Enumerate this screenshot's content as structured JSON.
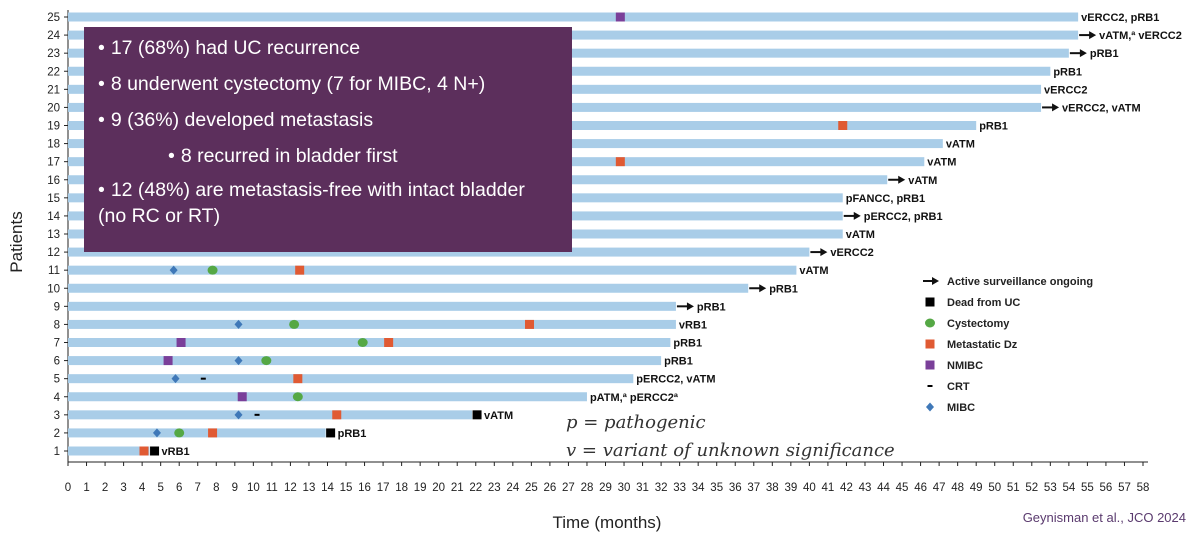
{
  "summary": {
    "items": [
      {
        "text": "17 (68%) had UC recurrence",
        "sub": false
      },
      {
        "text": "8 underwent cystectomy (7 for MIBC, 4 N+)",
        "sub": false
      },
      {
        "text": "9 (36%) developed metastasis",
        "sub": false
      },
      {
        "text": "8 recurred in bladder first",
        "sub": true
      },
      {
        "text": "12 (48%) are metastasis-free with intact bladder (no RC or RT)",
        "sub": false
      }
    ]
  },
  "notes": [
    "p = pathogenic",
    "v = variant of unknown significance"
  ],
  "citation": "Geynisman et al., JCO 2024",
  "colors": {
    "bar": "#a9cde8",
    "arrow": "#111111",
    "dead": "#000000",
    "cystectomy": "#55a845",
    "metastatic": "#e05a33",
    "nmibc": "#7a3f99",
    "crt": "#000000",
    "mibc": "#3f78b8",
    "summary_box": "#5c2f5c"
  },
  "chart_data": {
    "type": "swimmer",
    "xlabel": "Time (months)",
    "ylabel": "Patients",
    "xlim": [
      0,
      58
    ],
    "xticks": [
      0,
      1,
      2,
      3,
      4,
      5,
      6,
      7,
      8,
      9,
      10,
      11,
      12,
      13,
      14,
      15,
      16,
      17,
      18,
      19,
      20,
      21,
      22,
      23,
      24,
      25,
      26,
      27,
      28,
      29,
      30,
      31,
      32,
      33,
      34,
      35,
      36,
      37,
      38,
      39,
      40,
      41,
      42,
      43,
      44,
      45,
      46,
      47,
      48,
      49,
      50,
      51,
      52,
      53,
      54,
      55,
      56,
      57,
      58
    ],
    "ylim": [
      1,
      25
    ],
    "grid": false,
    "legend_position": "right",
    "legend": [
      {
        "key": "arrow",
        "label": "Active surveillance ongoing"
      },
      {
        "key": "dead",
        "label": "Dead from UC"
      },
      {
        "key": "cystectomy",
        "label": "Cystectomy"
      },
      {
        "key": "metastatic",
        "label": "Metastatic Dz"
      },
      {
        "key": "nmibc",
        "label": "NMIBC"
      },
      {
        "key": "crt",
        "label": "CRT"
      },
      {
        "key": "mibc",
        "label": "MIBC"
      }
    ],
    "patients": [
      {
        "id": 25,
        "end": 54.5,
        "arrow": false,
        "label": "vERCC2, pRB1",
        "events": [
          {
            "type": "nmibc",
            "t": 29.8
          }
        ]
      },
      {
        "id": 24,
        "end": 54.5,
        "arrow": true,
        "label": "vATM,ª vERCC2",
        "events": []
      },
      {
        "id": 23,
        "end": 54.0,
        "arrow": true,
        "label": "pRB1",
        "events": []
      },
      {
        "id": 22,
        "end": 53.0,
        "arrow": false,
        "label": "pRB1",
        "events": []
      },
      {
        "id": 21,
        "end": 52.5,
        "arrow": false,
        "label": "vERCC2",
        "events": []
      },
      {
        "id": 20,
        "end": 52.5,
        "arrow": true,
        "label": "vERCC2, vATM",
        "events": []
      },
      {
        "id": 19,
        "end": 49.0,
        "arrow": false,
        "label": "pRB1",
        "events": [
          {
            "type": "metastatic",
            "t": 41.8
          }
        ]
      },
      {
        "id": 18,
        "end": 47.2,
        "arrow": false,
        "label": "vATM",
        "events": []
      },
      {
        "id": 17,
        "end": 46.2,
        "arrow": false,
        "label": "vATM",
        "events": [
          {
            "type": "metastatic",
            "t": 29.8
          }
        ]
      },
      {
        "id": 16,
        "end": 44.2,
        "arrow": true,
        "label": "vATM",
        "events": []
      },
      {
        "id": 15,
        "end": 41.8,
        "arrow": false,
        "label": "pFANCC, pRB1",
        "events": []
      },
      {
        "id": 14,
        "end": 41.8,
        "arrow": true,
        "label": "pERCC2, pRB1",
        "events": []
      },
      {
        "id": 13,
        "end": 41.8,
        "arrow": false,
        "label": "vATM",
        "events": []
      },
      {
        "id": 12,
        "end": 40.0,
        "arrow": true,
        "label": "vERCC2",
        "events": []
      },
      {
        "id": 11,
        "end": 39.3,
        "arrow": false,
        "label": "vATM",
        "events": [
          {
            "type": "mibc",
            "t": 5.7
          },
          {
            "type": "cystectomy",
            "t": 7.8
          },
          {
            "type": "metastatic",
            "t": 12.5
          }
        ]
      },
      {
        "id": 10,
        "end": 36.7,
        "arrow": true,
        "label": "pRB1",
        "events": []
      },
      {
        "id": 9,
        "end": 32.8,
        "arrow": true,
        "label": "pRB1",
        "events": []
      },
      {
        "id": 8,
        "end": 32.8,
        "arrow": false,
        "label": "vRB1",
        "events": [
          {
            "type": "mibc",
            "t": 9.2
          },
          {
            "type": "cystectomy",
            "t": 12.2
          },
          {
            "type": "metastatic",
            "t": 24.9
          }
        ]
      },
      {
        "id": 7,
        "end": 32.5,
        "arrow": false,
        "label": "pRB1",
        "events": [
          {
            "type": "nmibc",
            "t": 6.1
          },
          {
            "type": "cystectomy",
            "t": 15.9
          },
          {
            "type": "metastatic",
            "t": 17.3
          }
        ]
      },
      {
        "id": 6,
        "end": 32.0,
        "arrow": false,
        "label": "pRB1",
        "events": [
          {
            "type": "nmibc",
            "t": 5.4
          },
          {
            "type": "mibc",
            "t": 9.2
          },
          {
            "type": "cystectomy",
            "t": 10.7
          }
        ]
      },
      {
        "id": 5,
        "end": 30.5,
        "arrow": false,
        "label": "pERCC2, vATM",
        "events": [
          {
            "type": "mibc",
            "t": 5.8
          },
          {
            "type": "crt",
            "t": 7.3
          },
          {
            "type": "metastatic",
            "t": 12.4
          }
        ]
      },
      {
        "id": 4,
        "end": 28.0,
        "arrow": false,
        "label": "pATM,ª pERCC2ª",
        "events": [
          {
            "type": "nmibc",
            "t": 9.4
          },
          {
            "type": "cystectomy",
            "t": 12.4
          }
        ]
      },
      {
        "id": 3,
        "end": 21.8,
        "arrow": false,
        "label": "vATM",
        "dead": true,
        "events": [
          {
            "type": "mibc",
            "t": 9.2
          },
          {
            "type": "crt",
            "t": 10.2
          },
          {
            "type": "metastatic",
            "t": 14.5
          }
        ]
      },
      {
        "id": 2,
        "end": 13.9,
        "arrow": false,
        "label": "pRB1",
        "dead": true,
        "events": [
          {
            "type": "mibc",
            "t": 4.8
          },
          {
            "type": "cystectomy",
            "t": 6.0
          },
          {
            "type": "metastatic",
            "t": 7.8
          }
        ]
      },
      {
        "id": 1,
        "end": 4.4,
        "arrow": false,
        "label": "vRB1",
        "dead": true,
        "events": [
          {
            "type": "metastatic",
            "t": 4.1
          }
        ]
      }
    ]
  }
}
